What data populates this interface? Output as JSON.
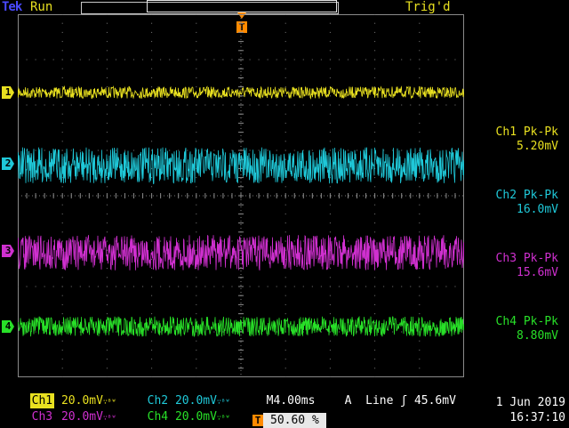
{
  "header": {
    "brand": "Tek",
    "run_state": "Run",
    "trig_state": "Trig'd"
  },
  "channels": [
    {
      "id": "1",
      "color": "#e8e020",
      "meas_label": "Ch1 Pk-Pk",
      "meas_value": "5.20mV",
      "trace_noise_pk_pk_mV": 5.2
    },
    {
      "id": "2",
      "color": "#1fc8d8",
      "meas_label": "Ch2 Pk-Pk",
      "meas_value": "16.0mV",
      "trace_noise_pk_pk_mV": 16.0
    },
    {
      "id": "3",
      "color": "#d030d0",
      "meas_label": "Ch3 Pk-Pk",
      "meas_value": "15.6mV",
      "trace_noise_pk_pk_mV": 15.6
    },
    {
      "id": "4",
      "color": "#28e028",
      "meas_label": "Ch4 Pk-Pk",
      "meas_value": "8.80mV",
      "trace_noise_pk_pk_mV": 8.8
    }
  ],
  "scale": {
    "ch1_label": "Ch1",
    "ch1_value": "20.0mV",
    "ch2_label": "Ch2",
    "ch2_value": "20.0mV",
    "ch3_label": "Ch3",
    "ch3_value": "20.0mV",
    "ch4_label": "Ch4",
    "ch4_value": "20.0mV",
    "bw_mark": "∵ᴮᵂ",
    "timebase": "M4.00ms",
    "trigger_source_code": "A",
    "trigger_source": "Line",
    "trigger_slope": "ʃ",
    "trigger_level": "45.6mV"
  },
  "trigger_marker": "T",
  "trigger_position": "50.60 %",
  "date": "1 Jun  2019",
  "time": "16:37:10"
}
